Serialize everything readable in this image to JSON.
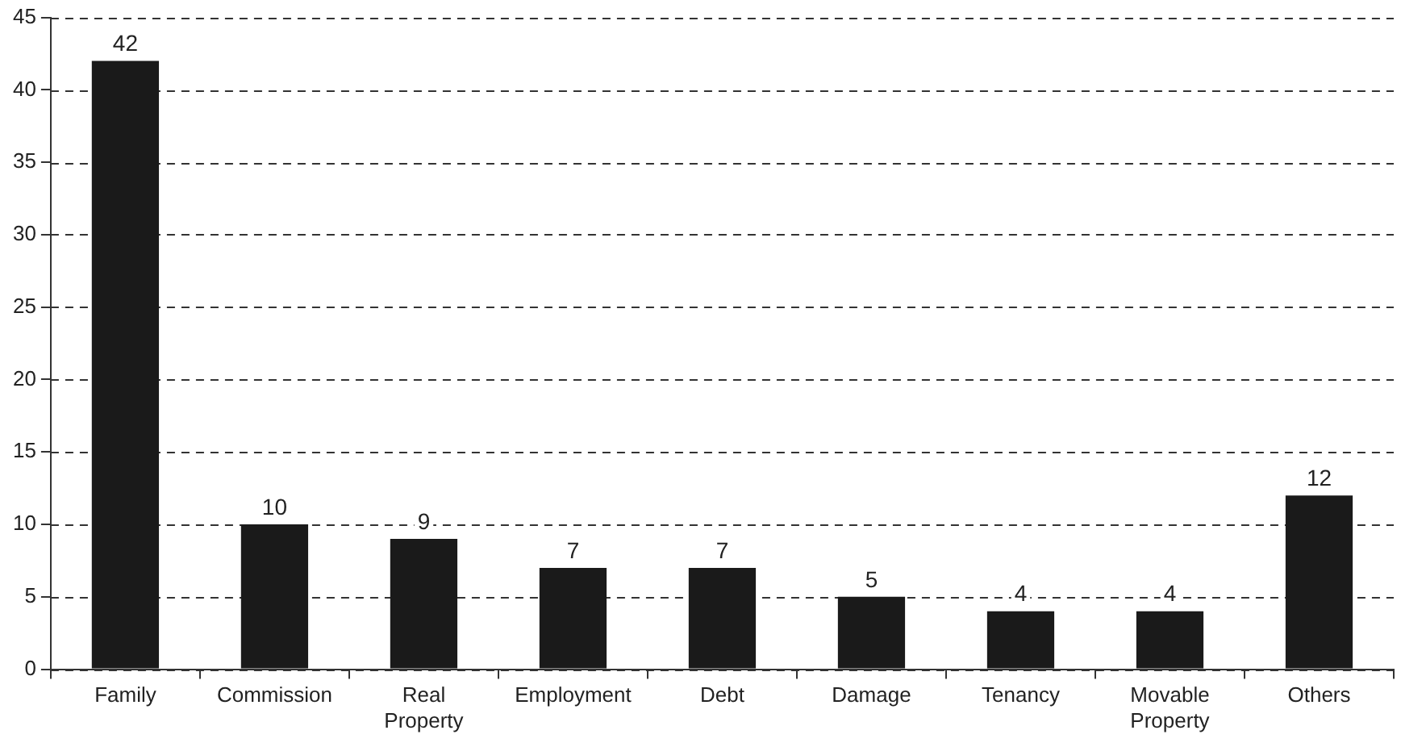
{
  "chart_data": {
    "type": "bar",
    "categories": [
      "Family",
      "Commission",
      "Real Property",
      "Employment",
      "Debt",
      "Damage",
      "Tenancy",
      "Movable Property",
      "Others"
    ],
    "values": [
      42,
      10,
      9,
      7,
      7,
      5,
      4,
      4,
      12
    ],
    "color": "#1a1a1a",
    "ylim": [
      0,
      45
    ],
    "yticks": [
      0,
      5,
      10,
      15,
      20,
      25,
      30,
      35,
      40,
      45
    ],
    "grid": "y",
    "line_style": "dashed",
    "data_labels": true,
    "legend": false
  }
}
